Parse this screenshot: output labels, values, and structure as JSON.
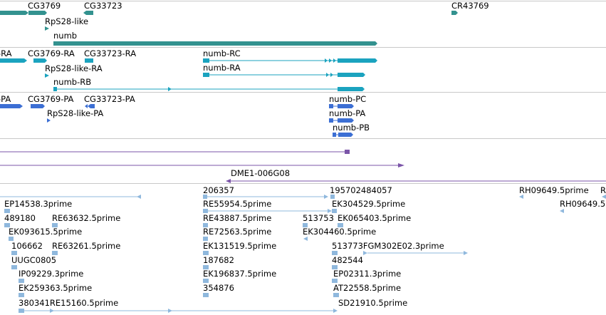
{
  "colors": {
    "gene": "#33928f",
    "transcript": "#1ba3bf",
    "protein": "#3c6fd4",
    "clone": "#7b55a8",
    "est": "#8fb8dd",
    "separator": "#c0c0c0"
  },
  "gene_track": {
    "genes": [
      {
        "label": "CG3769"
      },
      {
        "label": "CG33723"
      },
      {
        "label": "RpS28-like"
      },
      {
        "label": "numb"
      },
      {
        "label": "CR43769"
      }
    ]
  },
  "transcript_track": {
    "transcripts": [
      {
        "label": "-RA"
      },
      {
        "label": "CG3769-RA"
      },
      {
        "label": "CG33723-RA"
      },
      {
        "label": "numb-RC"
      },
      {
        "label": "RpS28-like-RA"
      },
      {
        "label": "numb-RA"
      },
      {
        "label": "numb-RB"
      }
    ]
  },
  "protein_track": {
    "proteins": [
      {
        "label": "-PA"
      },
      {
        "label": "CG3769-PA"
      },
      {
        "label": "CG33723-PA"
      },
      {
        "label": "numb-PC"
      },
      {
        "label": "RpS28-like-PA"
      },
      {
        "label": "numb-PA"
      },
      {
        "label": "numb-PB"
      }
    ]
  },
  "clone_track": {
    "clones": [
      {
        "label": ""
      },
      {
        "label": ""
      },
      {
        "label": "DME1-006G08"
      }
    ]
  },
  "est_track": {
    "labels": [
      "206357",
      "195702484057",
      "RH09649.5prime",
      "R",
      "EP14538.3prime",
      "RE55954.5prime",
      "EK304529.5prime",
      "RH09649.5",
      "489180",
      "RE63632.5prime",
      "RE43887.5prime",
      "513753",
      "EK065403.5prime",
      "EK093615.5prime",
      "RE72563.5prime",
      "EK304460.5prime",
      "106662",
      "RE63261.5prime",
      "EK131519.5prime",
      "513773FGM302E02.3prime",
      "UUGC0805",
      "187682",
      "482544",
      "IP09229.3prime",
      "EK196837.5prime",
      "EP02311.3prime",
      "EK259363.5prime",
      "354876",
      "AT22558.5prime",
      "380341RE15160.5prime",
      "SD21910.5prime"
    ]
  }
}
